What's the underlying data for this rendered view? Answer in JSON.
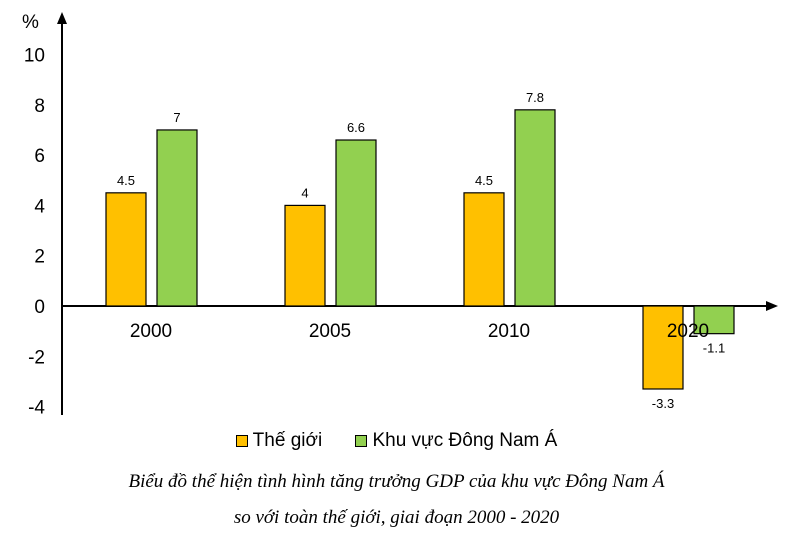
{
  "chart_data": {
    "type": "bar",
    "categories": [
      "2000",
      "2005",
      "2010",
      "2020"
    ],
    "series": [
      {
        "name": "Thế giới",
        "values": [
          4.5,
          4,
          4.5,
          -3.3
        ],
        "color": "#FFC000"
      },
      {
        "name": "Khu vực Đông Nam Á",
        "values": [
          7,
          6.6,
          7.8,
          -1.1
        ],
        "color": "#92D050"
      }
    ],
    "ylabel": "%",
    "ylim": [
      -4,
      10
    ],
    "yticks": [
      -4,
      -2,
      0,
      2,
      4,
      6,
      8,
      10
    ],
    "grid": false,
    "legend": "bottom",
    "caption": [
      "Biểu đồ thể hiện tình hình tăng trưởng GDP của khu vực Đông Nam Á",
      "so với toàn thế giới, giai đoạn 2000 - 2020"
    ]
  }
}
